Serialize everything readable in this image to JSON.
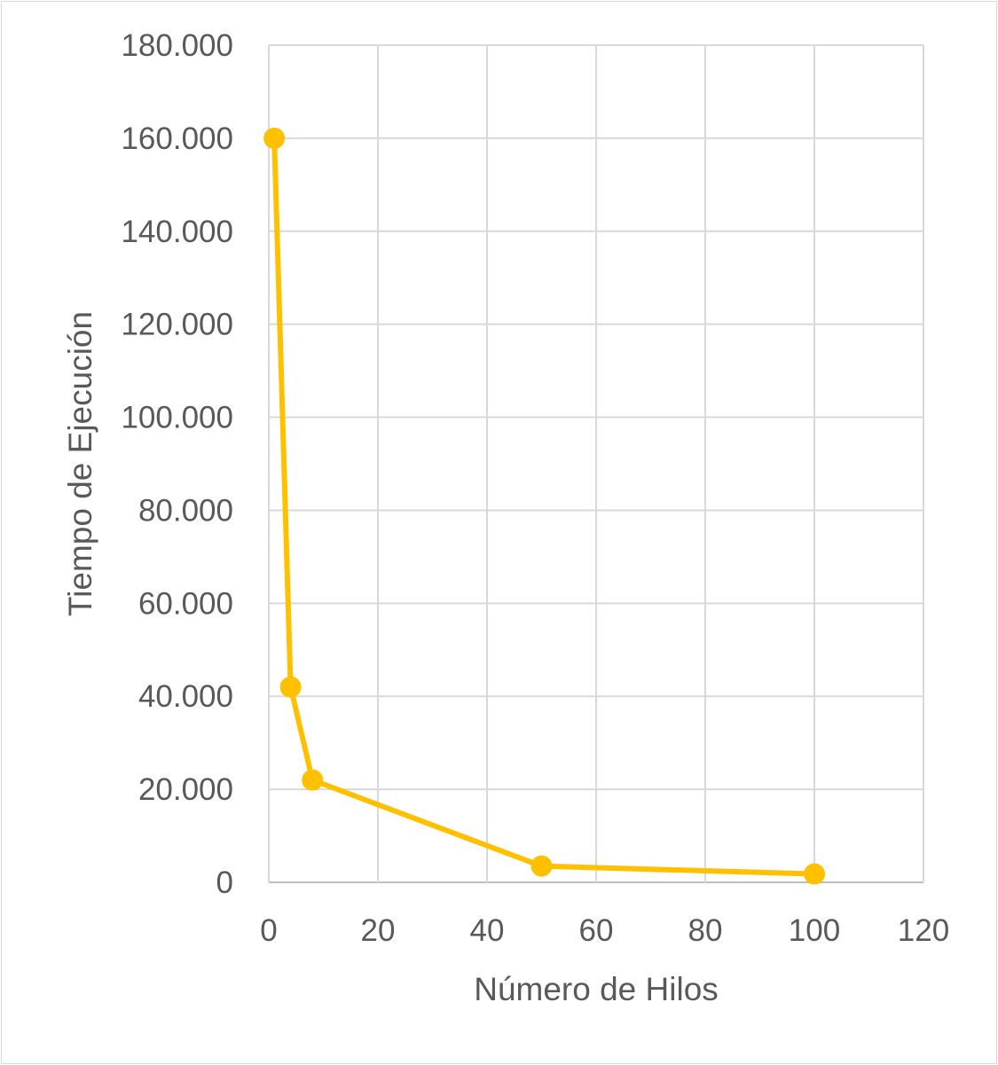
{
  "chart_data": {
    "type": "scatter",
    "mode": "lines+markers",
    "xlabel": "Número de Hilos",
    "ylabel": "Tiempo de Ejecución",
    "xlim": [
      0,
      120
    ],
    "ylim": [
      0,
      180000
    ],
    "x_ticks": [
      0,
      20,
      40,
      60,
      80,
      100,
      120
    ],
    "x_tick_labels": [
      "0",
      "20",
      "40",
      "60",
      "80",
      "100",
      "120"
    ],
    "y_ticks": [
      0,
      20000,
      40000,
      60000,
      80000,
      100000,
      120000,
      140000,
      160000,
      180000
    ],
    "y_tick_labels": [
      "0",
      "20.000",
      "40.000",
      "60.000",
      "80.000",
      "100.000",
      "120.000",
      "140.000",
      "160.000",
      "180.000"
    ],
    "grid": true,
    "legend": "none",
    "series": [
      {
        "x": [
          1,
          4,
          8,
          50,
          100
        ],
        "y": [
          160000,
          42000,
          22000,
          3500,
          1800
        ],
        "color": "#FFC000"
      }
    ]
  }
}
